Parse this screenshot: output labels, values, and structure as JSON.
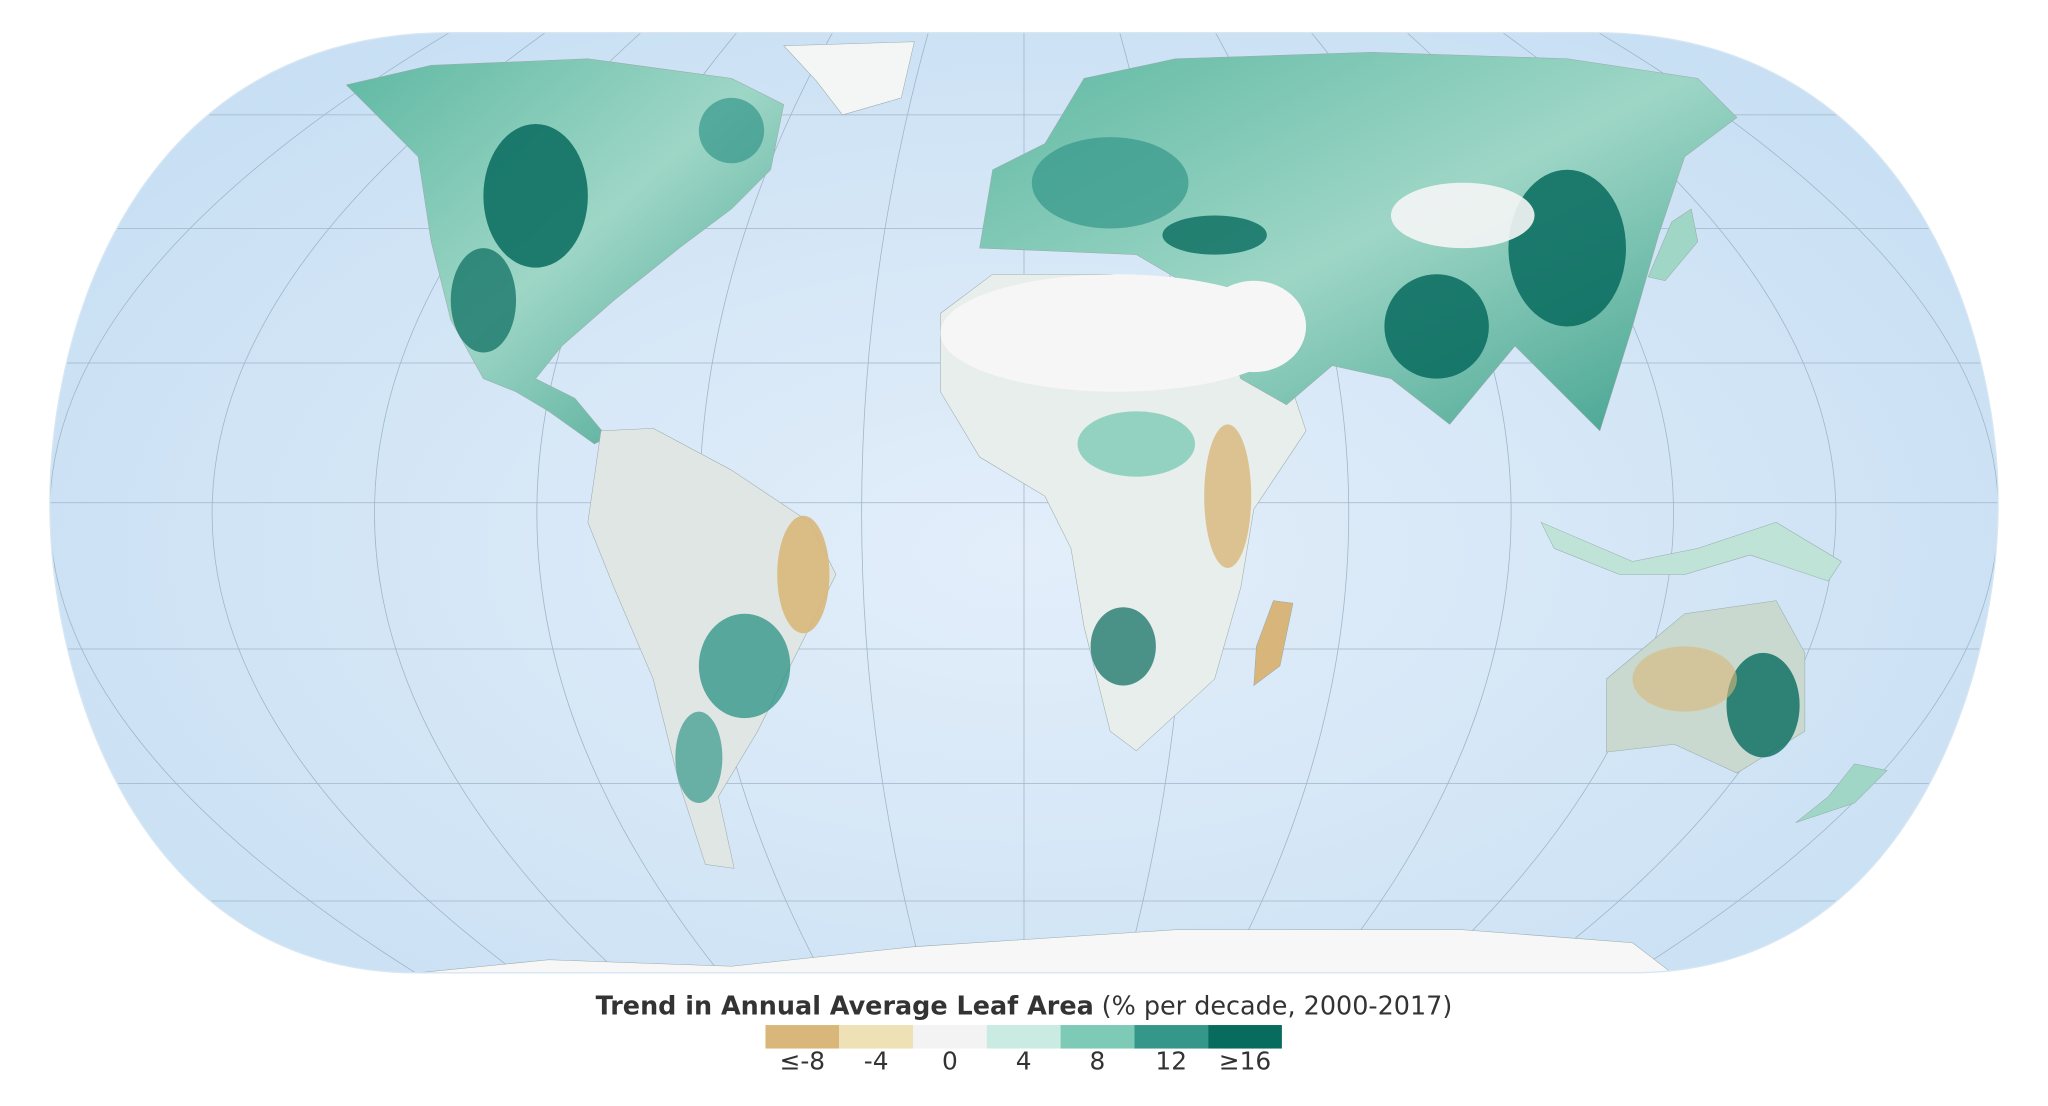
{
  "legend": {
    "title": "Trend in Annual Average Leaf Area",
    "subtitle": "(% per decade, 2000-2017)",
    "items": [
      {
        "label": "≤-8",
        "color": "#d9b77a"
      },
      {
        "label": "-4",
        "color": "#efe1b6"
      },
      {
        "label": "0",
        "color": "#f3f3f3"
      },
      {
        "label": "4",
        "color": "#c9ebe2"
      },
      {
        "label": "8",
        "color": "#7dcab7"
      },
      {
        "label": "12",
        "color": "#35978a"
      },
      {
        "label": "≥16",
        "color": "#076b5e"
      }
    ]
  }
}
